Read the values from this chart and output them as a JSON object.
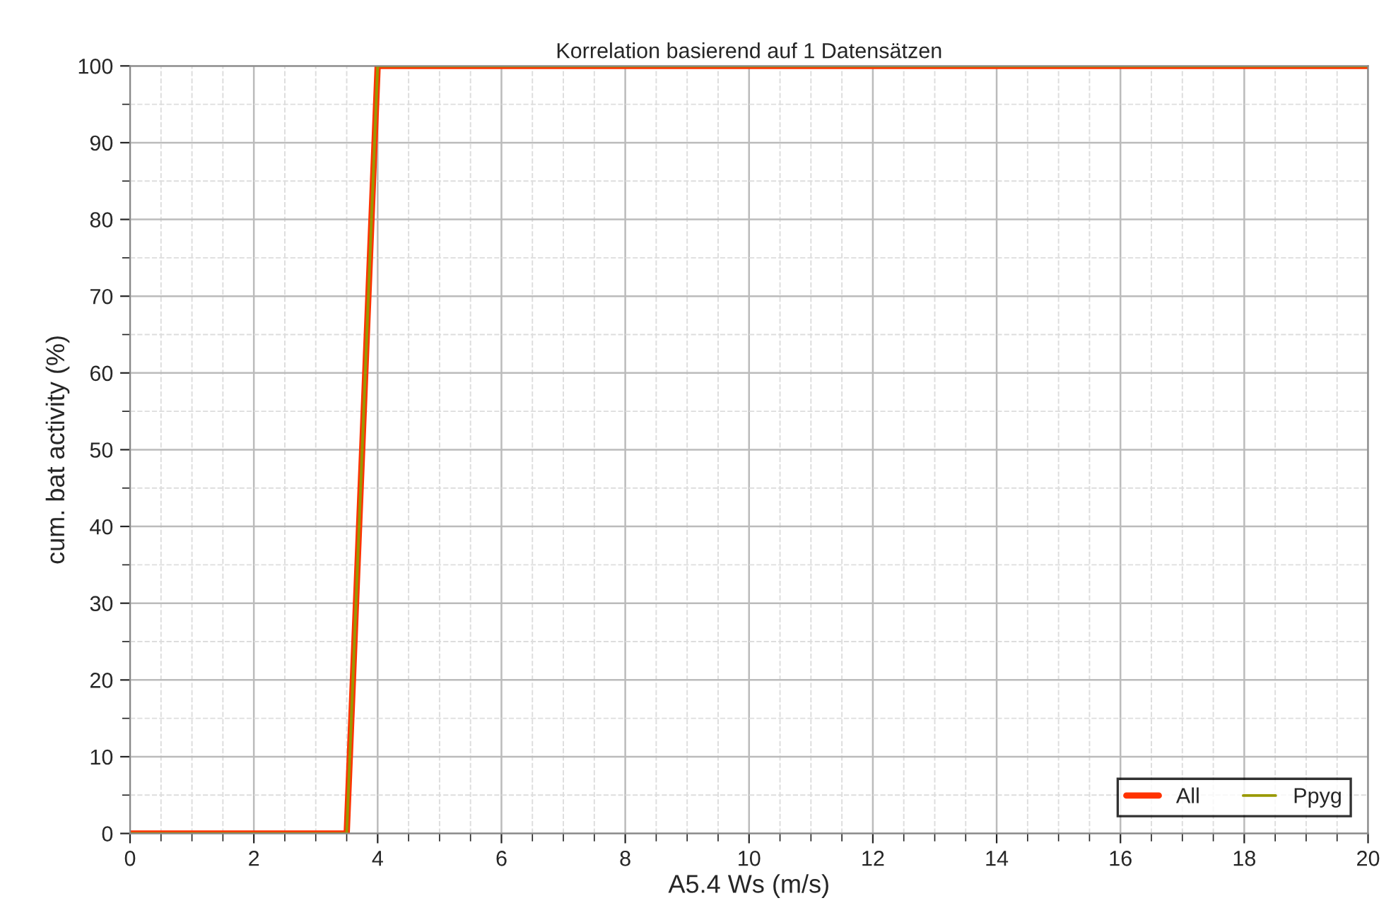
{
  "chart_data": {
    "type": "line",
    "title": "Korrelation basierend auf 1 Datensätzen",
    "xlabel": "A5.4 Ws (m/s)",
    "ylabel": "cum. bat activity (%)",
    "series": [
      {
        "name": "All",
        "color": "#ff3300",
        "x": [
          0,
          3.5,
          4,
          20
        ],
        "values": [
          0,
          0,
          100,
          100
        ]
      },
      {
        "name": "Ppyg",
        "color": "#999900",
        "x": [
          0,
          3.5,
          4,
          20
        ],
        "values": [
          0,
          0,
          100,
          100
        ]
      }
    ],
    "xlim": [
      0,
      20
    ],
    "xticks": [
      0,
      2,
      4,
      6,
      8,
      10,
      12,
      14,
      16,
      18,
      20
    ],
    "ylim": [
      0,
      100
    ],
    "yticks": [
      0,
      10,
      20,
      30,
      40,
      50,
      60,
      70,
      80,
      90,
      100
    ],
    "grid": true,
    "legend": "bottom right",
    "marker": "none",
    "line_style": "solid"
  }
}
